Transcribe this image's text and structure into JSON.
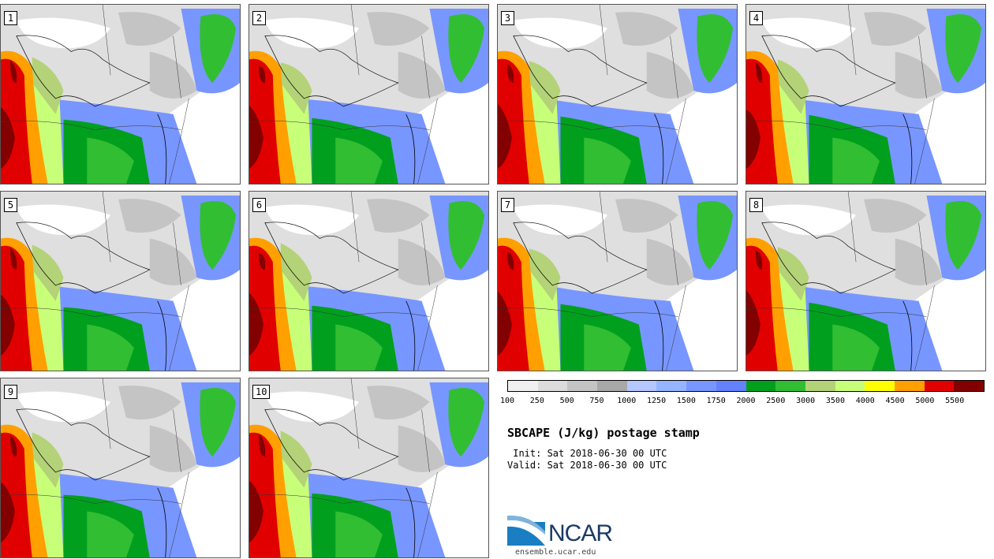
{
  "members": [
    "1",
    "2",
    "3",
    "4",
    "5",
    "6",
    "7",
    "8",
    "9",
    "10"
  ],
  "title": "SBCAPE (J/kg) postage stamp",
  "init": " Init: Sat 2018-06-30 00 UTC",
  "valid": "Valid: Sat 2018-06-30 00 UTC",
  "colorbar": {
    "colors": [
      "#f0f0f0",
      "#dcdcdc",
      "#c4c4c4",
      "#a8a8a8",
      "#b4c8ff",
      "#96b4ff",
      "#7896ff",
      "#6482ff",
      "#00a01e",
      "#32be32",
      "#b4d278",
      "#c8ff78",
      "#ffff00",
      "#ffa000",
      "#e10000",
      "#820000"
    ],
    "ticks": [
      "100",
      "250",
      "500",
      "750",
      "1000",
      "1250",
      "1500",
      "1750",
      "2000",
      "2500",
      "3000",
      "3500",
      "4000",
      "4500",
      "5000",
      "5500"
    ]
  },
  "logo": {
    "text": "NCAR",
    "url": "ensemble.ucar.edu"
  }
}
